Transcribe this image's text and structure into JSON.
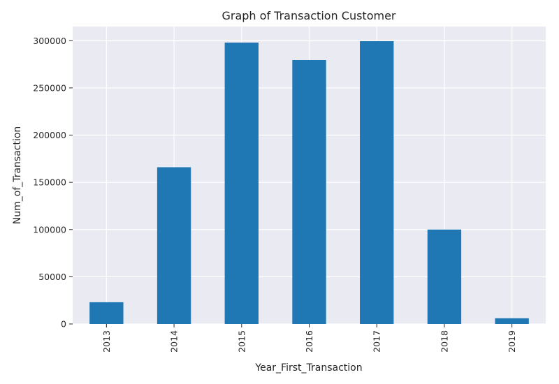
{
  "chart_data": {
    "type": "bar",
    "title": "Graph of Transaction Customer",
    "xlabel": "Year_First_Transaction",
    "ylabel": "Num_of_Transaction",
    "categories": [
      "2013",
      "2014",
      "2015",
      "2016",
      "2017",
      "2018",
      "2019"
    ],
    "values": [
      23000,
      166000,
      298000,
      279500,
      299500,
      100000,
      6000
    ],
    "ylim": [
      0,
      315000
    ],
    "yticks": [
      0,
      50000,
      100000,
      150000,
      200000,
      250000,
      300000
    ],
    "ytick_labels": [
      "0",
      "50000",
      "100000",
      "150000",
      "200000",
      "250000",
      "300000"
    ],
    "grid": true,
    "colors": {
      "bar": "#1f77b4",
      "plot_background": "#eaeaf2",
      "grid": "#ffffff"
    }
  }
}
